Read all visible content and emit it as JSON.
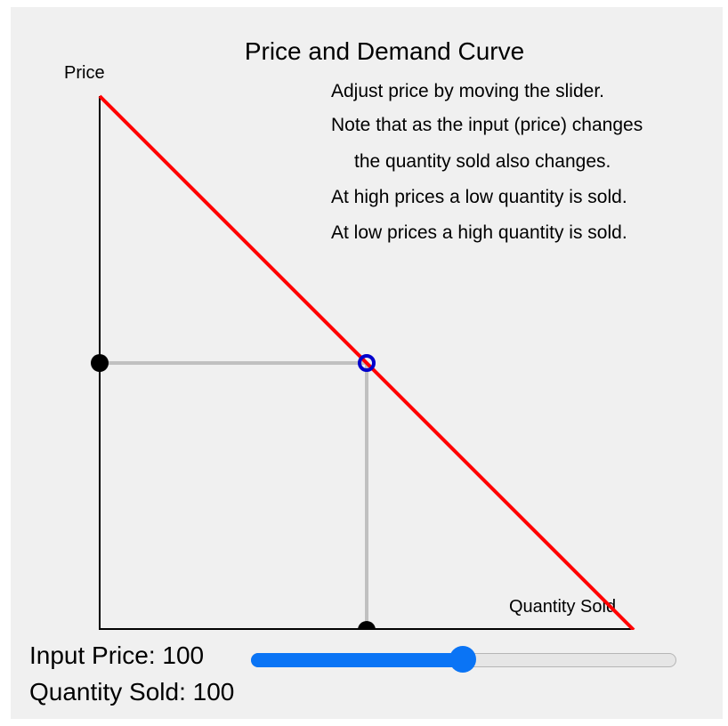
{
  "title": "Price and Demand Curve",
  "notes": [
    "Adjust price by moving the slider.",
    "Note that as the input (price) changes",
    "the quantity sold also changes.",
    "At high prices a low quantity is sold.",
    "At low prices a high quantity is sold."
  ],
  "axes": {
    "y_label": "Price",
    "x_label": "Quantity Sold"
  },
  "readout": {
    "price_label": "Input Price: ",
    "price_value": "100",
    "quantity_label": "Quantity Sold: ",
    "quantity_value": "100"
  },
  "slider": {
    "value": 100,
    "min": 0,
    "max": 200,
    "fill_fraction": 0.5
  },
  "chart_data": {
    "type": "line",
    "title": "Price and Demand Curve",
    "xlabel": "Quantity Sold",
    "ylabel": "Price",
    "xlim": [
      0,
      200
    ],
    "ylim": [
      0,
      200
    ],
    "grid": false,
    "series": [
      {
        "x": [
          0,
          200
        ],
        "y": [
          200,
          0
        ]
      }
    ],
    "current_point": {
      "x": 100,
      "y": 100
    }
  },
  "colors": {
    "demand_line": "#ff0000",
    "guide_lines": "#c0c0c0",
    "current_point": "#0000cc",
    "axis_markers": "#000000",
    "slider_accent": "#0a74f5",
    "background": "#f0f0f0"
  }
}
